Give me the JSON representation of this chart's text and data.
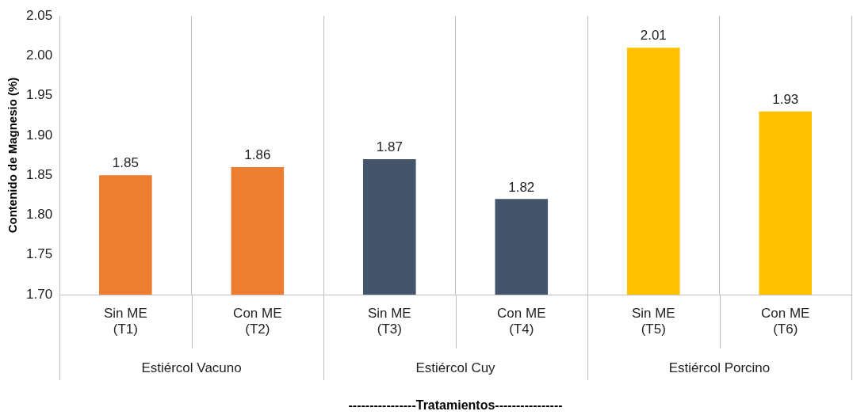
{
  "chart_data": {
    "type": "bar",
    "ylabel": "Contenido de Magnesio (%)",
    "xlabel": "----------------Tratamientos----------------",
    "categories": [
      "Sin ME\n(T1)",
      "Con ME\n(T2)",
      "Sin ME\n(T3)",
      "Con ME\n(T4)",
      "Sin ME\n(T5)",
      "Con ME\n(T6)"
    ],
    "values": [
      1.85,
      1.86,
      1.87,
      1.82,
      2.01,
      1.93
    ],
    "colors": [
      "#ed7d31",
      "#ed7d31",
      "#44546a",
      "#44546a",
      "#ffc000",
      "#ffc000"
    ],
    "ylim": [
      1.7,
      2.05
    ],
    "yticks": [
      {
        "value": 1.7,
        "label": "1.70"
      },
      {
        "value": 1.75,
        "label": "1.75"
      },
      {
        "value": 1.8,
        "label": "1.80"
      },
      {
        "value": 1.85,
        "label": "1.85"
      },
      {
        "value": 1.9,
        "label": "1.90"
      },
      {
        "value": 1.95,
        "label": "1.95"
      },
      {
        "value": 2.0,
        "label": "2.00"
      },
      {
        "value": 2.05,
        "label": "2.05"
      }
    ],
    "annotations": [
      "Estiércol Vacuno",
      "Estiércol Cuy",
      "Estiércol Porcino"
    ],
    "grid": "x",
    "data_labels": true,
    "legend": false
  }
}
